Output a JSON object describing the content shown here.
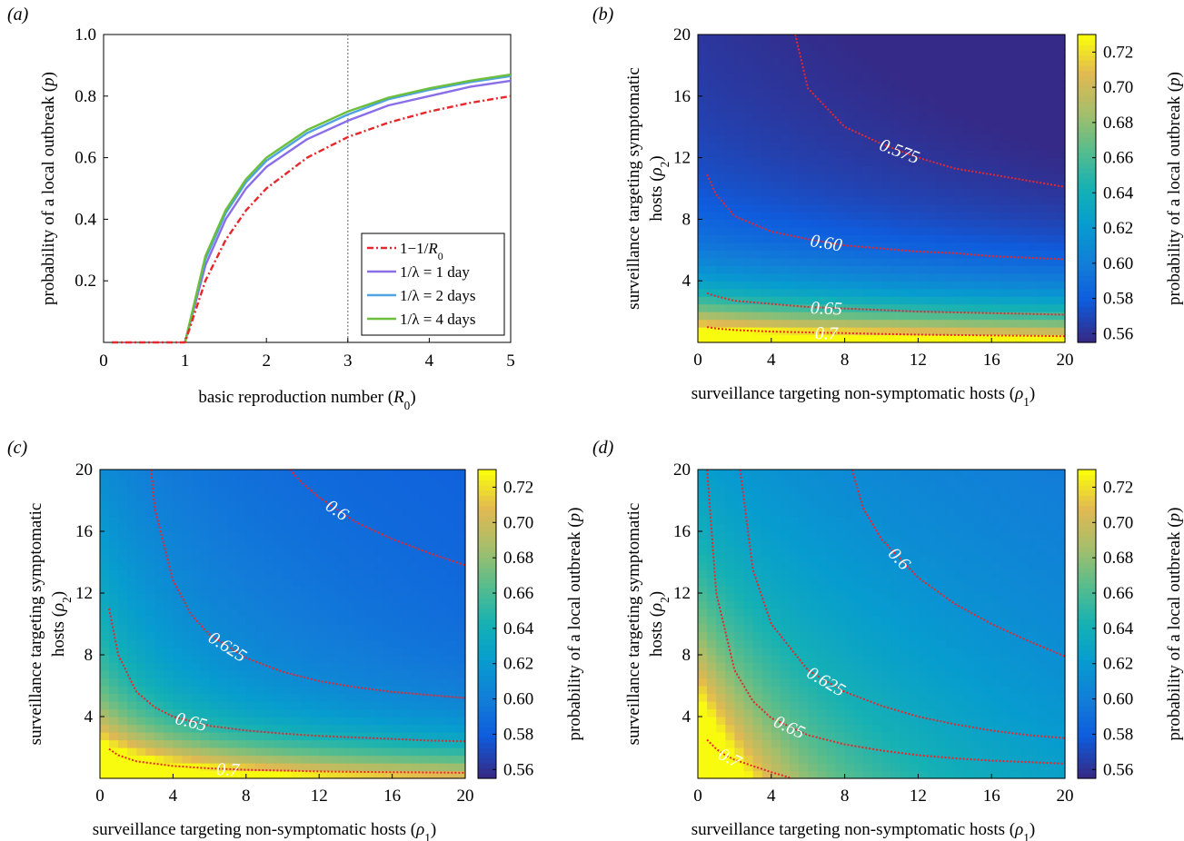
{
  "chart_data": [
    {
      "panel_label": "(a)",
      "type": "line",
      "xlabel": "basic reproduction number (R0)",
      "ylabel": "probability of a local outbreak (p)",
      "xlim": [
        0,
        5
      ],
      "ylim": [
        0,
        1
      ],
      "xticks": [
        "0",
        "1",
        "2",
        "3",
        "4",
        "5"
      ],
      "yticks": [
        "0.2",
        "0.4",
        "0.6",
        "0.8",
        "1.0"
      ],
      "reference_line_x": 3,
      "legend_position": "lower-right",
      "series": [
        {
          "name": "1−1/R0",
          "color": "#e8262b",
          "style": "dashdot",
          "x": [
            0.1,
            1.0,
            1.25,
            1.5,
            1.75,
            2.0,
            2.5,
            3.0,
            3.5,
            4.0,
            4.5,
            5.0
          ],
          "y": [
            0,
            0,
            0.2,
            0.333,
            0.429,
            0.5,
            0.6,
            0.667,
            0.714,
            0.75,
            0.778,
            0.8
          ]
        },
        {
          "name": "1/λ = 1 day",
          "color": "#8a6ee8",
          "style": "solid",
          "x": [
            1.0,
            1.25,
            1.5,
            1.75,
            2.0,
            2.5,
            3.0,
            3.5,
            4.0,
            4.5,
            5.0
          ],
          "y": [
            0,
            0.25,
            0.4,
            0.5,
            0.57,
            0.66,
            0.72,
            0.77,
            0.8,
            0.83,
            0.85
          ]
        },
        {
          "name": "1/λ = 2 days",
          "color": "#4fa3e0",
          "style": "solid",
          "x": [
            1.0,
            1.25,
            1.5,
            1.75,
            2.0,
            2.5,
            3.0,
            3.5,
            4.0,
            4.5,
            5.0
          ],
          "y": [
            0,
            0.27,
            0.42,
            0.52,
            0.59,
            0.68,
            0.74,
            0.79,
            0.82,
            0.845,
            0.865
          ]
        },
        {
          "name": "1/λ = 4 days",
          "color": "#6cbf3a",
          "style": "solid",
          "x": [
            1.0,
            1.25,
            1.5,
            1.75,
            2.0,
            2.5,
            3.0,
            3.5,
            4.0,
            4.5,
            5.0
          ],
          "y": [
            0,
            0.28,
            0.43,
            0.53,
            0.6,
            0.69,
            0.75,
            0.795,
            0.825,
            0.85,
            0.87
          ]
        }
      ]
    },
    {
      "panel_label": "(b)",
      "type": "heatmap",
      "xlabel": "surveillance targeting non-symptomatic hosts (ρ1)",
      "ylabel_line1": "surveillance targeting symptomatic",
      "ylabel_line2": "hosts (ρ2)",
      "colorbar_label": "probability of a local outbreak (p)",
      "xlim": [
        0,
        20
      ],
      "ylim": [
        0,
        20
      ],
      "xticks": [
        "0",
        "4",
        "8",
        "12",
        "16",
        "20"
      ],
      "yticks": [
        "4",
        "8",
        "12",
        "16",
        "20"
      ],
      "colorbar_ticks": [
        "0.56",
        "0.58",
        "0.60",
        "0.62",
        "0.64",
        "0.66",
        "0.68",
        "0.70",
        "0.72"
      ],
      "clim": [
        0.555,
        0.73
      ],
      "contours": [
        {
          "label": "0.575",
          "x": [
            5.3,
            6,
            8,
            10,
            12,
            14,
            16,
            18,
            20
          ],
          "y": [
            20,
            16.5,
            14.0,
            12.9,
            12.0,
            11.3,
            10.9,
            10.5,
            10.1
          ]
        },
        {
          "label": "0.60",
          "x": [
            0.5,
            1,
            2,
            4,
            6,
            8,
            10,
            12,
            14,
            16,
            18,
            20
          ],
          "y": [
            10.9,
            9.6,
            8.2,
            7.2,
            6.7,
            6.3,
            6.1,
            5.9,
            5.8,
            5.6,
            5.5,
            5.4
          ]
        },
        {
          "label": "0.65",
          "x": [
            0.5,
            1,
            2,
            4,
            6,
            8,
            10,
            12,
            14,
            16,
            18,
            20
          ],
          "y": [
            3.2,
            3.0,
            2.7,
            2.5,
            2.3,
            2.2,
            2.1,
            2.0,
            1.95,
            1.9,
            1.85,
            1.8
          ]
        },
        {
          "label": "0.7",
          "x": [
            0.5,
            1,
            2,
            4,
            6,
            8,
            10,
            12,
            14,
            16,
            18,
            20
          ],
          "y": [
            1.0,
            0.9,
            0.8,
            0.7,
            0.65,
            0.6,
            0.55,
            0.5,
            0.48,
            0.45,
            0.43,
            0.4
          ]
        }
      ]
    },
    {
      "panel_label": "(c)",
      "type": "heatmap",
      "xlabel": "surveillance targeting non-symptomatic hosts (ρ1)",
      "ylabel_line1": "surveillance targeting symptomatic",
      "ylabel_line2": "hosts (ρ2)",
      "colorbar_label": "probability of a local outbreak (p)",
      "xlim": [
        0,
        20
      ],
      "ylim": [
        0,
        20
      ],
      "xticks": [
        "0",
        "4",
        "8",
        "12",
        "16",
        "20"
      ],
      "yticks": [
        "4",
        "8",
        "12",
        "16",
        "20"
      ],
      "colorbar_ticks": [
        "0.56",
        "0.58",
        "0.60",
        "0.62",
        "0.64",
        "0.66",
        "0.68",
        "0.70",
        "0.72"
      ],
      "clim": [
        0.555,
        0.73
      ],
      "contours": [
        {
          "label": "0.6",
          "x": [
            10.4,
            11,
            12,
            14,
            16,
            18,
            20
          ],
          "y": [
            20,
            19.2,
            18.2,
            16.6,
            15.5,
            14.6,
            13.8
          ]
        },
        {
          "label": "0.625",
          "x": [
            2.8,
            3,
            4,
            5,
            6,
            8,
            10,
            12,
            14,
            16,
            18,
            20
          ],
          "y": [
            20,
            17.5,
            12.8,
            10.6,
            9.3,
            7.8,
            6.9,
            6.3,
            5.9,
            5.6,
            5.4,
            5.2
          ]
        },
        {
          "label": "0.65",
          "x": [
            0.5,
            1,
            2,
            3,
            4,
            6,
            8,
            10,
            12,
            14,
            16,
            18,
            20
          ],
          "y": [
            11.0,
            8.0,
            5.6,
            4.6,
            4.0,
            3.4,
            3.1,
            2.9,
            2.75,
            2.65,
            2.55,
            2.45,
            2.4
          ]
        },
        {
          "label": "0.7",
          "x": [
            0.5,
            1,
            2,
            4,
            6,
            8,
            10,
            12,
            14,
            16,
            18,
            20
          ],
          "y": [
            1.9,
            1.5,
            1.1,
            0.8,
            0.65,
            0.55,
            0.5,
            0.45,
            0.42,
            0.4,
            0.38,
            0.36
          ]
        }
      ]
    },
    {
      "panel_label": "(d)",
      "type": "heatmap",
      "xlabel": "surveillance targeting non-symptomatic hosts (ρ1)",
      "ylabel_line1": "surveillance targeting symptomatic",
      "ylabel_line2": "hosts (ρ2)",
      "colorbar_label": "probability of a local outbreak (p)",
      "xlim": [
        0,
        20
      ],
      "ylim": [
        0,
        20
      ],
      "xticks": [
        "0",
        "4",
        "8",
        "12",
        "16",
        "20"
      ],
      "yticks": [
        "4",
        "8",
        "12",
        "16",
        "20"
      ],
      "colorbar_ticks": [
        "0.56",
        "0.58",
        "0.60",
        "0.62",
        "0.64",
        "0.66",
        "0.68",
        "0.70",
        "0.72"
      ],
      "clim": [
        0.555,
        0.73
      ],
      "contours": [
        {
          "label": "0.6",
          "x": [
            8.4,
            9,
            10,
            12,
            14,
            16,
            18,
            20
          ],
          "y": [
            20,
            17.5,
            15.5,
            13.0,
            11.3,
            10.0,
            8.9,
            7.9
          ]
        },
        {
          "label": "0.625",
          "x": [
            2.3,
            3,
            4,
            6,
            8,
            10,
            12,
            14,
            16,
            18,
            20
          ],
          "y": [
            20,
            13.5,
            10.0,
            7.0,
            5.6,
            4.7,
            4.0,
            3.5,
            3.1,
            2.8,
            2.6
          ]
        },
        {
          "label": "0.65",
          "x": [
            0.5,
            1,
            2,
            3,
            4,
            6,
            8,
            10,
            12,
            14,
            16,
            18,
            20
          ],
          "y": [
            20,
            12.0,
            7.0,
            5.0,
            3.9,
            2.8,
            2.2,
            1.8,
            1.5,
            1.3,
            1.15,
            1.05,
            0.95
          ]
        },
        {
          "label": "0.7",
          "x": [
            0.5,
            1,
            1.5,
            2,
            3,
            4,
            5
          ],
          "y": [
            2.5,
            1.9,
            1.5,
            1.2,
            0.8,
            0.4,
            0.05
          ]
        }
      ]
    }
  ]
}
